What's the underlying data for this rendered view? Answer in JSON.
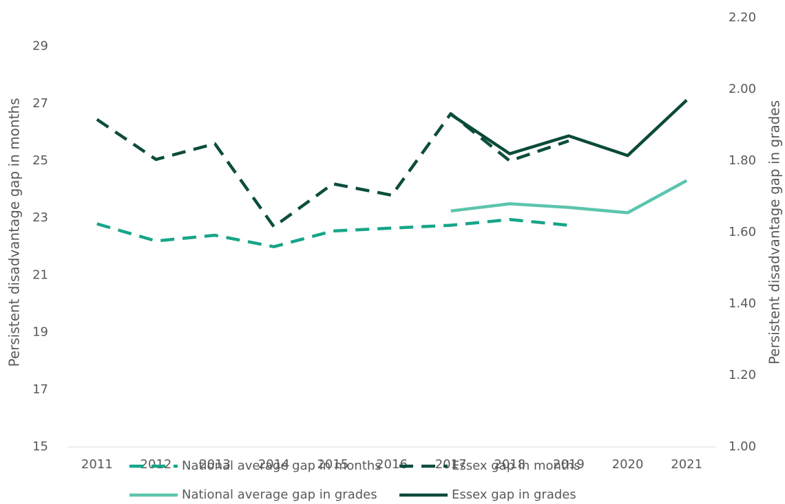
{
  "chart_data": {
    "type": "line",
    "y_label": "Persistent disadvantage gap in months",
    "y2_label": "Persistent disadvantage gap in grades",
    "categories": [
      "2011",
      "2012",
      "2013",
      "2014",
      "2015",
      "2016",
      "2017",
      "2018",
      "2019",
      "2020",
      "2021"
    ],
    "ylim": [
      15,
      30
    ],
    "yticks": [
      15,
      17,
      19,
      21,
      23,
      25,
      27,
      29
    ],
    "y2lim": [
      1.0,
      2.2
    ],
    "y2ticks": [
      {
        "value": 1.0,
        "label": "1.00"
      },
      {
        "value": 1.2,
        "label": "1.20"
      },
      {
        "value": 1.4,
        "label": "1.40"
      },
      {
        "value": 1.6,
        "label": "1.60"
      },
      {
        "value": 1.8,
        "label": "1.80"
      },
      {
        "value": 2.0,
        "label": "2.00"
      },
      {
        "value": 2.2,
        "label": "2.20"
      }
    ],
    "grid": false,
    "legend": "bottom",
    "series": [
      {
        "name": "National average gap in months",
        "color": "#17a589",
        "dashed": true,
        "values": [
          22.8,
          22.2,
          22.4,
          22.0,
          22.55,
          22.65,
          22.75,
          22.95,
          22.75,
          null,
          null
        ]
      },
      {
        "name": "Essex gap in months",
        "color": "#0d4d3e",
        "dashed": true,
        "values": [
          26.45,
          25.05,
          25.6,
          22.7,
          24.2,
          23.8,
          26.65,
          25.0,
          25.7,
          null,
          null
        ]
      },
      {
        "name": "National average gap in grades",
        "color": "#5cc4ad",
        "dashed": false,
        "axis": "y2",
        "values": [
          null,
          null,
          null,
          null,
          null,
          null,
          1.66,
          1.68,
          1.67,
          1.655,
          1.745
        ]
      },
      {
        "name": "Essex gap in grades",
        "color": "#0b4a3a",
        "dashed": false,
        "axis": "y2",
        "values": [
          null,
          null,
          null,
          null,
          null,
          null,
          1.93,
          1.82,
          1.87,
          1.815,
          1.97
        ]
      }
    ]
  }
}
